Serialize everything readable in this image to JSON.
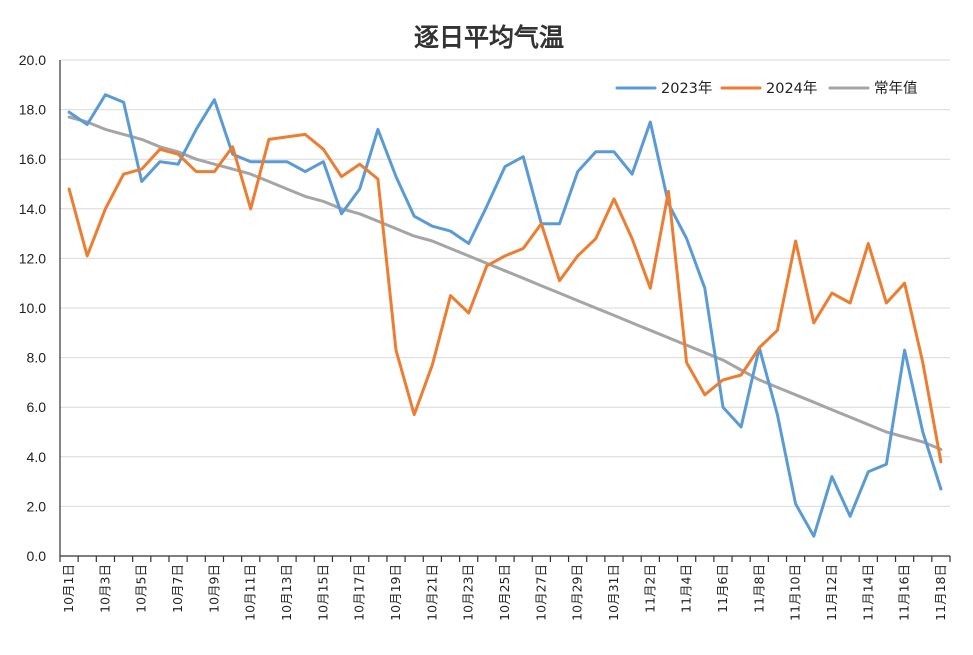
{
  "chart_data": {
    "type": "line",
    "title": "逐日平均气温",
    "xlabel": "",
    "ylabel": "",
    "ylim": [
      0,
      20
    ],
    "yticks": [
      "0.0",
      "2.0",
      "4.0",
      "6.0",
      "8.0",
      "10.0",
      "12.0",
      "14.0",
      "16.0",
      "18.0",
      "20.0"
    ],
    "grid": true,
    "legend_position": "top-right",
    "x_tick_labels": [
      "10月1日",
      "10月3日",
      "10月5日",
      "10月7日",
      "10月9日",
      "10月11日",
      "10月13日",
      "10月15日",
      "10月17日",
      "10月19日",
      "10月21日",
      "10月23日",
      "10月25日",
      "10月27日",
      "10月29日",
      "10月31日",
      "11月2日",
      "11月4日",
      "11月6日",
      "11月8日",
      "11月10日",
      "11月12日",
      "11月14日",
      "11月16日",
      "11月18日"
    ],
    "categories": [
      "10月1日",
      "10月2日",
      "10月3日",
      "10月4日",
      "10月5日",
      "10月6日",
      "10月7日",
      "10月8日",
      "10月9日",
      "10月10日",
      "10月11日",
      "10月12日",
      "10月13日",
      "10月14日",
      "10月15日",
      "10月16日",
      "10月17日",
      "10月18日",
      "10月19日",
      "10月20日",
      "10月21日",
      "10月22日",
      "10月23日",
      "10月24日",
      "10月25日",
      "10月26日",
      "10月27日",
      "10月28日",
      "10月29日",
      "10月30日",
      "10月31日",
      "11月1日",
      "11月2日",
      "11月3日",
      "11月4日",
      "11月5日",
      "11月6日",
      "11月7日",
      "11月8日",
      "11月9日",
      "11月10日",
      "11月11日",
      "11月12日",
      "11月13日",
      "11月14日",
      "11月15日",
      "11月16日",
      "11月17日",
      "11月18日"
    ],
    "series": [
      {
        "name": "2023年",
        "color": "#5b9bd5",
        "values": [
          17.9,
          17.4,
          18.6,
          18.3,
          15.1,
          15.9,
          15.8,
          17.2,
          18.4,
          16.2,
          15.9,
          15.9,
          15.9,
          15.5,
          15.9,
          13.8,
          14.8,
          17.2,
          15.3,
          13.7,
          13.3,
          13.1,
          12.6,
          14.1,
          15.7,
          16.1,
          13.4,
          13.4,
          15.5,
          16.3,
          16.3,
          15.4,
          17.5,
          14.2,
          12.8,
          10.8,
          6.0,
          5.2,
          8.4,
          5.7,
          2.1,
          0.8,
          3.2,
          1.6,
          3.4,
          3.7,
          8.3,
          5.0,
          2.7
        ]
      },
      {
        "name": "2024年",
        "color": "#ed7d31",
        "values": [
          14.8,
          12.1,
          14.0,
          15.4,
          15.6,
          16.4,
          16.2,
          15.5,
          15.5,
          16.5,
          14.0,
          16.8,
          16.9,
          17.0,
          16.4,
          15.3,
          15.8,
          15.2,
          8.3,
          5.7,
          7.7,
          10.5,
          9.8,
          11.7,
          12.1,
          12.4,
          13.4,
          11.1,
          12.1,
          12.8,
          14.4,
          12.8,
          10.8,
          14.7,
          7.8,
          6.5,
          7.1,
          7.3,
          8.4,
          9.1,
          12.7,
          9.4,
          10.6,
          10.2,
          12.6,
          10.2,
          11.0,
          7.8,
          3.8
        ]
      },
      {
        "name": "常年值",
        "color": "#a5a5a5",
        "values": [
          17.7,
          17.5,
          17.2,
          17.0,
          16.8,
          16.5,
          16.3,
          16.0,
          15.8,
          15.6,
          15.4,
          15.1,
          14.8,
          14.5,
          14.3,
          14.0,
          13.8,
          13.5,
          13.2,
          12.9,
          12.7,
          12.4,
          12.1,
          11.8,
          11.5,
          11.2,
          10.9,
          10.6,
          10.3,
          10.0,
          9.7,
          9.4,
          9.1,
          8.8,
          8.5,
          8.2,
          7.9,
          7.5,
          7.1,
          6.8,
          6.5,
          6.2,
          5.9,
          5.6,
          5.3,
          5.0,
          4.8,
          4.6,
          4.3
        ]
      }
    ]
  }
}
